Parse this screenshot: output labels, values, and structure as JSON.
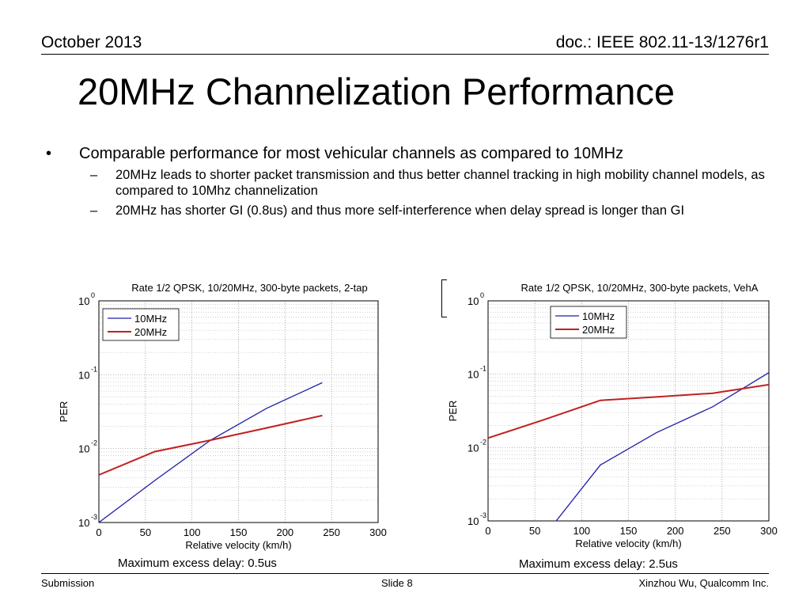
{
  "header": {
    "date": "October 2013",
    "doc": "doc.: IEEE 802.11-13/1276r1"
  },
  "slide_title": "20MHz Channelization Performance",
  "bullets": {
    "main": "Comparable performance for most vehicular channels as compared to 10MHz",
    "sub": [
      "20MHz leads to shorter packet transmission and thus better channel tracking in high mobility channel models, as compared to 10Mhz channelization",
      "20MHz has shorter GI (0.8us) and thus more self-interference when delay spread is longer than GI"
    ]
  },
  "captions": [
    "Maximum excess delay: 0.5us",
    "Maximum excess delay: 2.5us"
  ],
  "footer": {
    "left": "Submission",
    "center": "Slide 8",
    "right": "Xinzhou Wu, Qualcomm Inc."
  },
  "chart_data": [
    {
      "type": "line",
      "title": "Rate 1/2 QPSK, 10/20MHz, 300-byte packets, 2-tap",
      "xlabel": "Relative velocity (km/h)",
      "ylabel": "PER",
      "xlim": [
        0,
        300
      ],
      "ylim": [
        0.001,
        1
      ],
      "yscale": "log",
      "xticks": [
        0,
        50,
        100,
        150,
        200,
        250,
        300
      ],
      "yticks": [
        0.001,
        0.01,
        0.1,
        1
      ],
      "grid": true,
      "legend_position": "top-left",
      "series": [
        {
          "name": "10MHz",
          "color": "#1f1fa8",
          "x": [
            0,
            60,
            120,
            180,
            240
          ],
          "y": [
            0.001,
            0.0037,
            0.013,
            0.035,
            0.078
          ]
        },
        {
          "name": "20MHz",
          "color": "#c02020",
          "x": [
            0,
            60,
            120,
            180,
            240
          ],
          "y": [
            0.0044,
            0.0091,
            0.013,
            0.019,
            0.028
          ]
        }
      ]
    },
    {
      "type": "line",
      "title": "Rate 1/2 QPSK, 10/20MHz, 300-byte packets, VehA",
      "xlabel": "Relative velocity (km/h)",
      "ylabel": "PER",
      "xlim": [
        0,
        300
      ],
      "ylim": [
        0.001,
        1
      ],
      "yscale": "log",
      "xticks": [
        0,
        50,
        100,
        150,
        200,
        250,
        300
      ],
      "yticks": [
        0.001,
        0.01,
        0.1,
        1
      ],
      "grid": true,
      "legend_position": "top-right",
      "series": [
        {
          "name": "10MHz",
          "color": "#1f1fa8",
          "x": [
            70,
            120,
            180,
            240,
            300
          ],
          "y": [
            0.0009,
            0.0058,
            0.016,
            0.036,
            0.105
          ]
        },
        {
          "name": "20MHz",
          "color": "#c02020",
          "x": [
            0,
            60,
            120,
            180,
            240,
            300
          ],
          "y": [
            0.0135,
            0.024,
            0.044,
            0.049,
            0.055,
            0.072
          ]
        }
      ]
    }
  ]
}
